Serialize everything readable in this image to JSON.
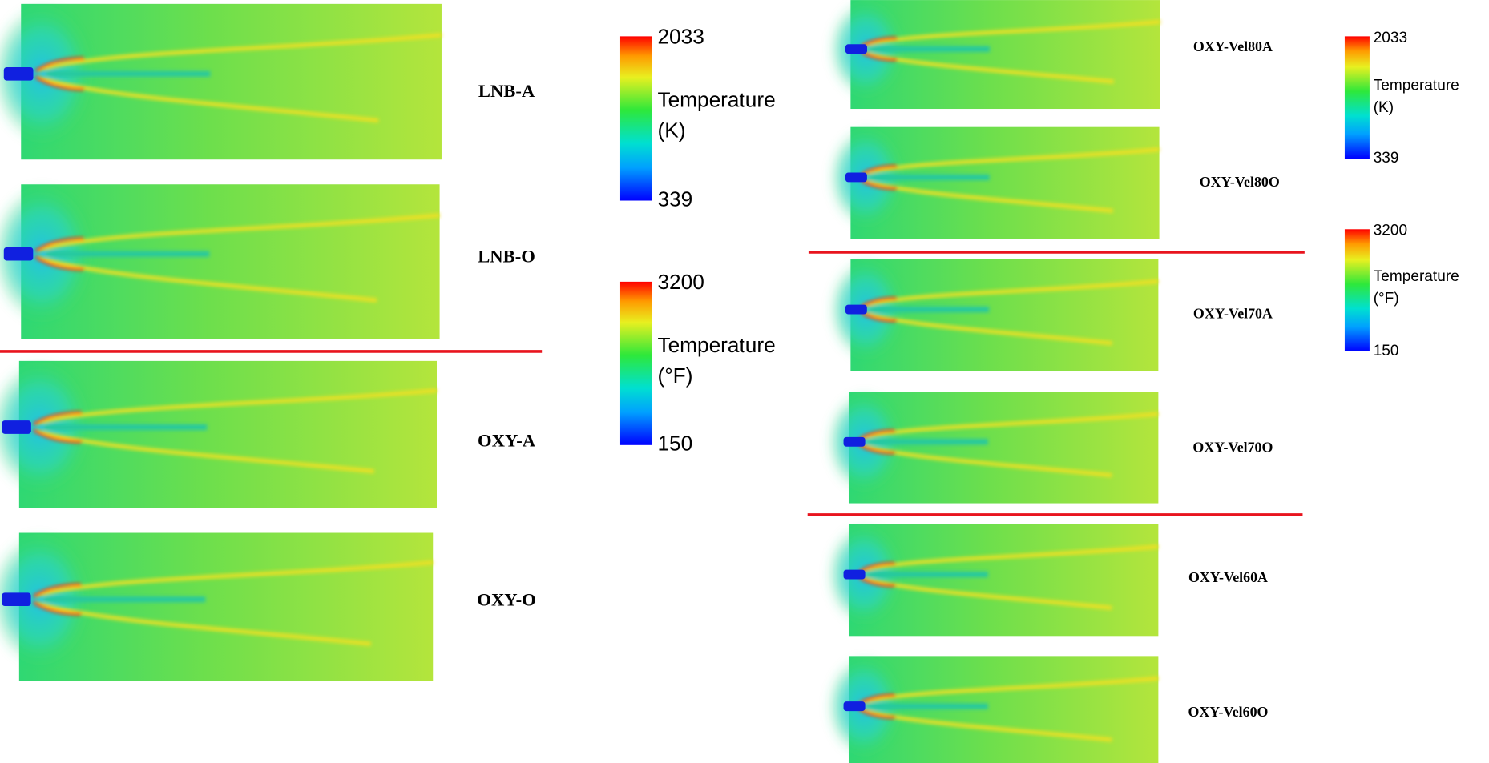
{
  "panels": [
    {
      "label": "LNB-A"
    },
    {
      "label": "LNB-O"
    },
    {
      "label": "OXY-A"
    },
    {
      "label": "OXY-O"
    },
    {
      "label": "OXY-Vel80A"
    },
    {
      "label": "OXY-Vel80O"
    },
    {
      "label": "OXY-Vel70A"
    },
    {
      "label": "OXY-Vel70O"
    },
    {
      "label": "OXY-Vel60A"
    },
    {
      "label": "OXY-Vel60O"
    }
  ],
  "colorbars": [
    {
      "max": 2033,
      "title": "Temperature",
      "unit": "(K)",
      "min": 339
    },
    {
      "max": 3200,
      "title": "Temperature",
      "unit": "(°F)",
      "min": 150
    },
    {
      "max": 2033,
      "title": "Temperature",
      "unit": "(K)",
      "min": 339
    },
    {
      "max": 3200,
      "title": "Temperature",
      "unit": "(°F)",
      "min": 150
    }
  ]
}
